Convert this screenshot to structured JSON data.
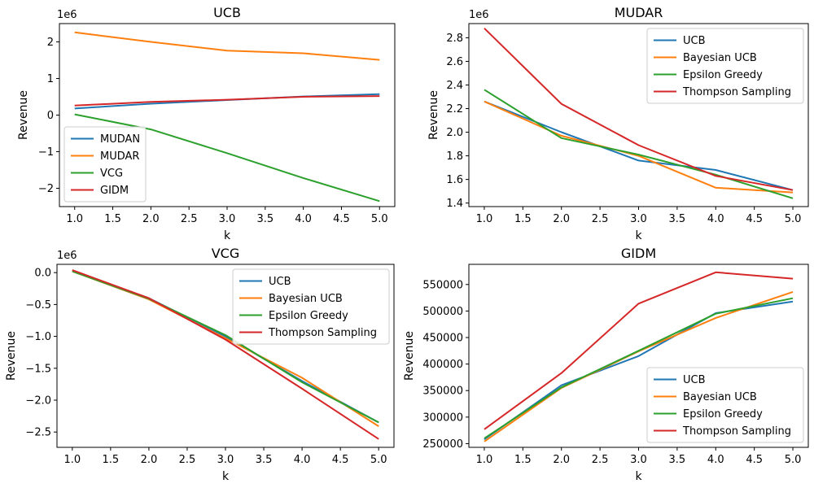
{
  "chart_data": [
    {
      "type": "line",
      "title": "UCB",
      "xlabel": "k",
      "ylabel": "Revenue",
      "y_offset_label": "1e6",
      "x": [
        1,
        2,
        3,
        4,
        5
      ],
      "xlim": [
        0.8,
        5.2
      ],
      "ylim": [
        -2.5,
        2.5
      ],
      "xticks": [
        1.0,
        1.5,
        2.0,
        2.5,
        3.0,
        3.5,
        4.0,
        4.5,
        5.0
      ],
      "xtick_labels": [
        "1.0",
        "1.5",
        "2.0",
        "2.5",
        "3.0",
        "3.5",
        "4.0",
        "4.5",
        "5.0"
      ],
      "yticks": [
        -2,
        -1,
        0,
        1,
        2
      ],
      "ytick_labels": [
        "−2",
        "−1",
        "0",
        "1",
        "2"
      ],
      "legend_position": "lower-left",
      "series": [
        {
          "name": "MUDAN",
          "color": "#1f77b4",
          "values": [
            0.18,
            0.31,
            0.41,
            0.51,
            0.57
          ]
        },
        {
          "name": "MUDAR",
          "color": "#ff7f0e",
          "values": [
            2.26,
            2.0,
            1.76,
            1.69,
            1.51
          ]
        },
        {
          "name": "VCG",
          "color": "#2ca02c",
          "values": [
            0.02,
            -0.39,
            -1.04,
            -1.72,
            -2.35
          ]
        },
        {
          "name": "GIDM",
          "color": "#d62728",
          "values": [
            0.26,
            0.36,
            0.42,
            0.5,
            0.52
          ]
        }
      ]
    },
    {
      "type": "line",
      "title": "MUDAR",
      "xlabel": "k",
      "ylabel": "Revenue",
      "y_offset_label": "1e6",
      "x": [
        1,
        2,
        3,
        4,
        5
      ],
      "xlim": [
        0.8,
        5.2
      ],
      "ylim": [
        1.37,
        2.92
      ],
      "xticks": [
        1.0,
        1.5,
        2.0,
        2.5,
        3.0,
        3.5,
        4.0,
        4.5,
        5.0
      ],
      "xtick_labels": [
        "1.0",
        "1.5",
        "2.0",
        "2.5",
        "3.0",
        "3.5",
        "4.0",
        "4.5",
        "5.0"
      ],
      "yticks": [
        1.4,
        1.6,
        1.8,
        2.0,
        2.2,
        2.4,
        2.6,
        2.8
      ],
      "ytick_labels": [
        "1.4",
        "1.6",
        "1.8",
        "2.0",
        "2.2",
        "2.4",
        "2.6",
        "2.8"
      ],
      "legend_position": "upper-right",
      "series": [
        {
          "name": "UCB",
          "color": "#1f77b4",
          "values": [
            2.26,
            2.0,
            1.76,
            1.68,
            1.51
          ]
        },
        {
          "name": "Bayesian UCB",
          "color": "#ff7f0e",
          "values": [
            2.26,
            1.97,
            1.8,
            1.53,
            1.49
          ]
        },
        {
          "name": "Epsilon Greedy",
          "color": "#2ca02c",
          "values": [
            2.36,
            1.95,
            1.81,
            1.64,
            1.44
          ]
        },
        {
          "name": "Thompson Sampling",
          "color": "#d62728",
          "values": [
            2.88,
            2.24,
            1.89,
            1.63,
            1.51
          ]
        }
      ]
    },
    {
      "type": "line",
      "title": "VCG",
      "xlabel": "k",
      "ylabel": "Revenue",
      "y_offset_label": "1e6",
      "x": [
        1,
        2,
        3,
        4,
        5
      ],
      "xlim": [
        0.8,
        5.2
      ],
      "ylim": [
        -2.74,
        0.13
      ],
      "xticks": [
        1.0,
        1.5,
        2.0,
        2.5,
        3.0,
        3.5,
        4.0,
        4.5,
        5.0
      ],
      "xtick_labels": [
        "1.0",
        "1.5",
        "2.0",
        "2.5",
        "3.0",
        "3.5",
        "4.0",
        "4.5",
        "5.0"
      ],
      "yticks": [
        -2.5,
        -2.0,
        -1.5,
        -1.0,
        -0.5,
        0.0
      ],
      "ytick_labels": [
        "−2.5",
        "−2.0",
        "−1.5",
        "−1.0",
        "−0.5",
        "0.0"
      ],
      "legend_position": "upper-right",
      "series": [
        {
          "name": "UCB",
          "color": "#1f77b4",
          "values": [
            0.02,
            -0.4,
            -1.0,
            -1.7,
            -2.35
          ]
        },
        {
          "name": "Bayesian UCB",
          "color": "#ff7f0e",
          "values": [
            0.02,
            -0.42,
            -1.03,
            -1.65,
            -2.41
          ]
        },
        {
          "name": "Epsilon Greedy",
          "color": "#2ca02c",
          "values": [
            0.02,
            -0.41,
            -0.98,
            -1.72,
            -2.35
          ]
        },
        {
          "name": "Thompson Sampling",
          "color": "#d62728",
          "values": [
            0.04,
            -0.4,
            -1.05,
            -1.82,
            -2.61
          ]
        }
      ]
    },
    {
      "type": "line",
      "title": "GIDM",
      "xlabel": "k",
      "ylabel": "Revenue",
      "y_offset_label": "",
      "x": [
        1,
        2,
        3,
        4,
        5
      ],
      "xlim": [
        0.8,
        5.2
      ],
      "ylim": [
        243000,
        588000
      ],
      "xticks": [
        1.0,
        1.5,
        2.0,
        2.5,
        3.0,
        3.5,
        4.0,
        4.5,
        5.0
      ],
      "xtick_labels": [
        "1.0",
        "1.5",
        "2.0",
        "2.5",
        "3.0",
        "3.5",
        "4.0",
        "4.5",
        "5.0"
      ],
      "yticks": [
        250000,
        300000,
        350000,
        400000,
        450000,
        500000,
        550000
      ],
      "ytick_labels": [
        "250000",
        "300000",
        "350000",
        "400000",
        "450000",
        "500000",
        "550000"
      ],
      "legend_position": "lower-right",
      "series": [
        {
          "name": "UCB",
          "color": "#1f77b4",
          "values": [
            258000,
            360000,
            415000,
            496000,
            518000
          ]
        },
        {
          "name": "Bayesian UCB",
          "color": "#ff7f0e",
          "values": [
            254000,
            355000,
            424000,
            487000,
            536000
          ]
        },
        {
          "name": "Epsilon Greedy",
          "color": "#2ca02c",
          "values": [
            260000,
            356000,
            425000,
            495000,
            524000
          ]
        },
        {
          "name": "Thompson Sampling",
          "color": "#d62728",
          "values": [
            277000,
            383000,
            514000,
            573000,
            561000
          ]
        }
      ]
    }
  ]
}
